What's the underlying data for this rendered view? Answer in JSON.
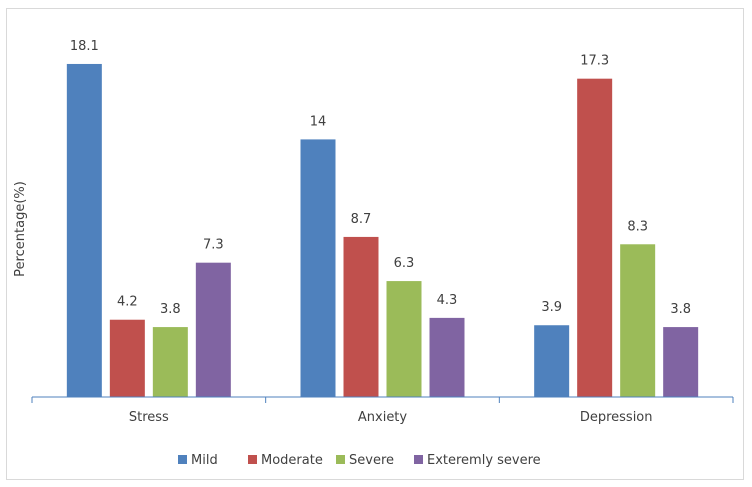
{
  "chart_data": {
    "type": "bar",
    "title": "",
    "xlabel": "",
    "ylabel": "Percentage(%)",
    "ylim": [
      0,
      20
    ],
    "grid": false,
    "legend_position": "bottom",
    "categories": [
      "Stress",
      "Anxiety",
      "Depression"
    ],
    "series": [
      {
        "name": "Mild",
        "color": "#4F81BD",
        "values": [
          18.1,
          14,
          3.9
        ]
      },
      {
        "name": "Moderate",
        "color": "#C0504D",
        "values": [
          4.2,
          8.7,
          17.3
        ]
      },
      {
        "name": "Severe",
        "color": "#9BBB59",
        "values": [
          3.8,
          6.3,
          8.3
        ]
      },
      {
        "name": "Exteremly severe",
        "color": "#8064A2",
        "values": [
          7.3,
          4.3,
          3.8
        ]
      }
    ],
    "data_labels": [
      [
        "18.1",
        "14",
        "3.9"
      ],
      [
        "4.2",
        "8.7",
        "17.3"
      ],
      [
        "3.8",
        "6.3",
        "8.3"
      ],
      [
        "7.3",
        "4.3",
        "3.8"
      ]
    ]
  }
}
